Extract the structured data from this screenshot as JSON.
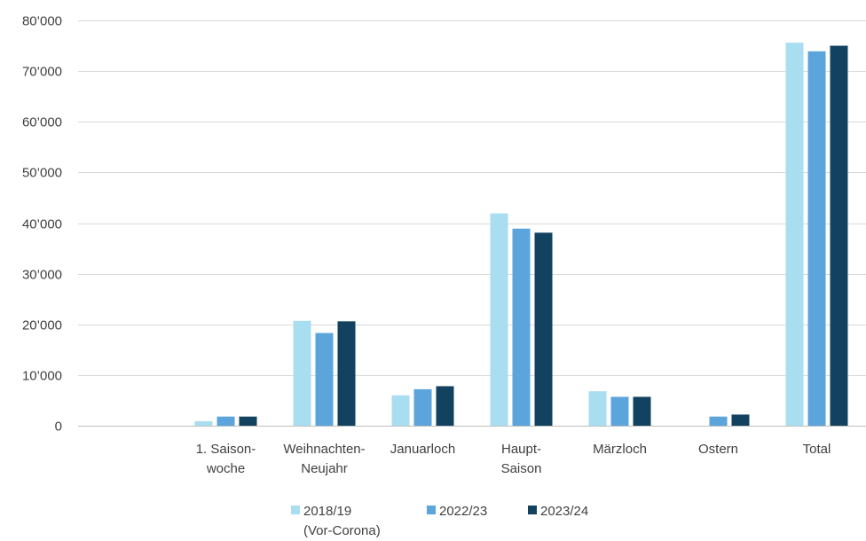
{
  "chart_data": {
    "type": "bar",
    "title": "",
    "xlabel": "",
    "ylabel": "",
    "categories": [
      [
        "",
        ""
      ],
      [
        "1. Saison-",
        "woche"
      ],
      [
        "Weihnachten-",
        "Neujahr"
      ],
      [
        "Januarloch"
      ],
      [
        "Haupt-",
        "Saison"
      ],
      [
        "Märzloch"
      ],
      [
        "Ostern"
      ],
      [
        "Total"
      ]
    ],
    "series": [
      {
        "name": [
          "2018/19",
          "(Vor-Corona)"
        ],
        "color": "#a9def0",
        "values": [
          null,
          900,
          20700,
          6000,
          41900,
          6800,
          null,
          75600
        ]
      },
      {
        "name": [
          "2022/23"
        ],
        "color": "#5ba4dc",
        "values": [
          null,
          1800,
          18300,
          7200,
          38900,
          5700,
          1800,
          73900
        ]
      },
      {
        "name": [
          "2023/24"
        ],
        "color": "#12425f",
        "values": [
          null,
          1800,
          20600,
          7800,
          38100,
          5700,
          2200,
          75000
        ]
      }
    ],
    "ylim": [
      0,
      80000
    ],
    "yticks": [
      0,
      10000,
      20000,
      30000,
      40000,
      50000,
      60000,
      70000,
      80000
    ],
    "ytick_labels": [
      "0",
      "10’000",
      "20’000",
      "30’000",
      "40’000",
      "50’000",
      "60’000",
      "70’000",
      "80’000"
    ],
    "grid": true,
    "legend_position": "bottom"
  }
}
